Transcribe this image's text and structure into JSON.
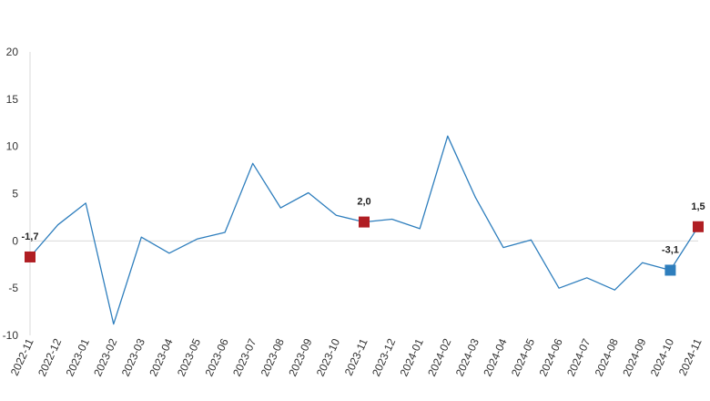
{
  "chart_data": {
    "type": "line",
    "categories": [
      "2022-11",
      "2022-12",
      "2023-01",
      "2023-02",
      "2023-03",
      "2023-04",
      "2023-05",
      "2023-06",
      "2023-07",
      "2023-08",
      "2023-09",
      "2023-10",
      "2023-11",
      "2023-12",
      "2024-01",
      "2024-02",
      "2024-03",
      "2024-04",
      "2024-05",
      "2024-06",
      "2024-07",
      "2024-08",
      "2024-09",
      "2024-10",
      "2024-11"
    ],
    "series": [
      {
        "values": [
          -1.7,
          1.7,
          4.0,
          -8.8,
          0.4,
          -1.3,
          0.2,
          0.9,
          8.2,
          3.5,
          5.1,
          2.7,
          2.0,
          2.3,
          1.3,
          11.1,
          4.6,
          -0.7,
          0.1,
          -5.0,
          -3.9,
          -5.2,
          -2.3,
          -3.1,
          1.5
        ]
      }
    ],
    "ylim": [
      -10,
      20
    ],
    "yticks": [
      -10,
      -5,
      0,
      5,
      10,
      15,
      20
    ],
    "ytick_labels": [
      "-10",
      "-5",
      "0",
      "5",
      "10",
      "15",
      "20"
    ],
    "grid": false,
    "line_color": "#2E7EBD",
    "highlights": [
      {
        "index": 0,
        "label": "-1,7",
        "color": "#B01E23"
      },
      {
        "index": 12,
        "label": "2,0",
        "color": "#B01E23"
      },
      {
        "index": 23,
        "label": "-3,1",
        "color": "#2E7EBD"
      },
      {
        "index": 24,
        "label": "1,5",
        "color": "#B01E23"
      }
    ]
  }
}
